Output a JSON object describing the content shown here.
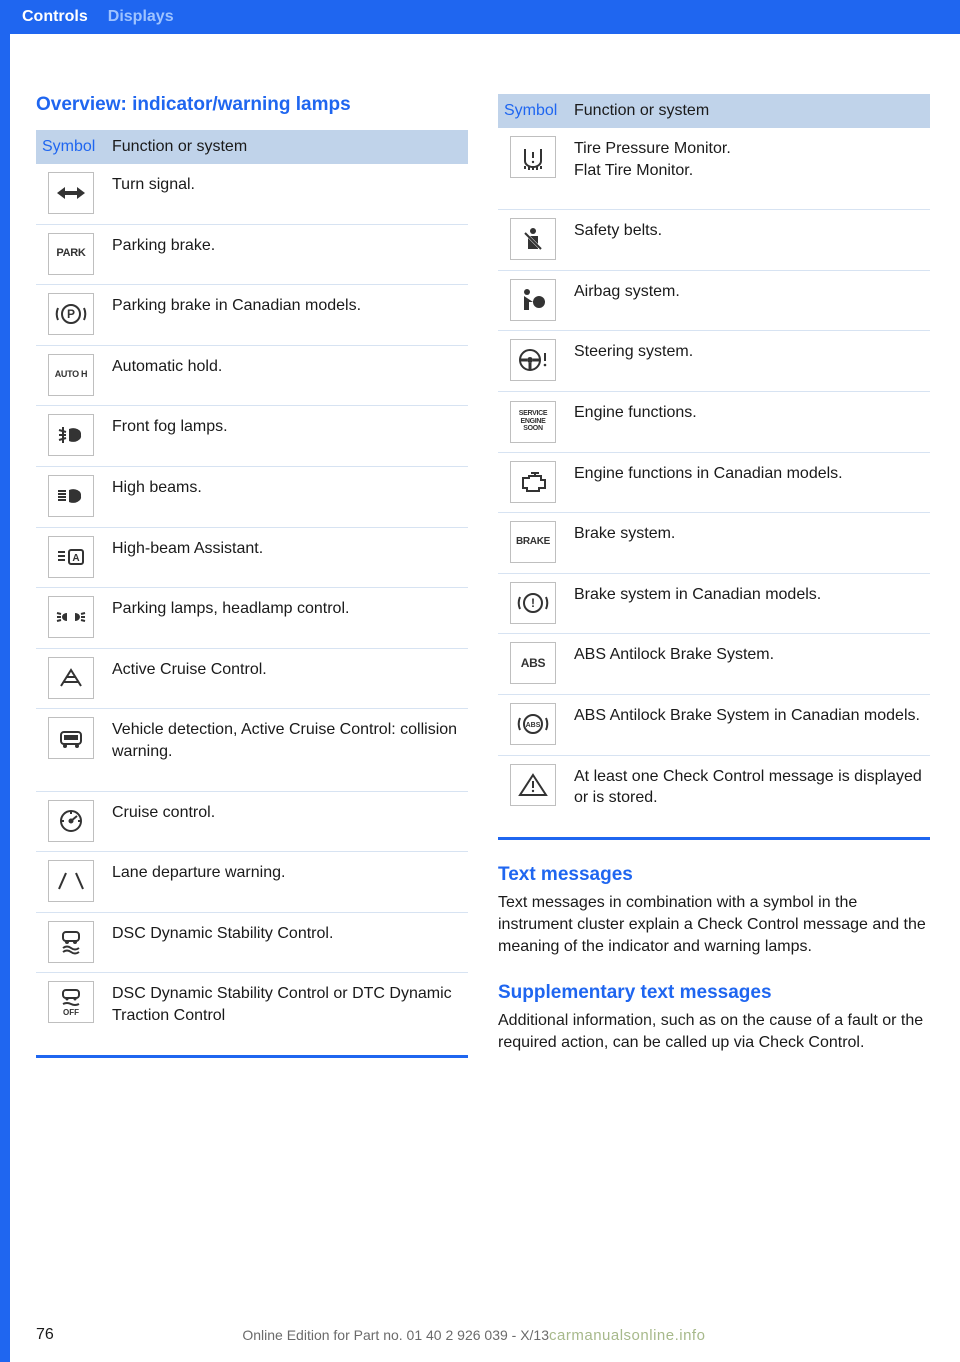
{
  "header": {
    "tab_active": "Controls",
    "tab_inactive": "Displays"
  },
  "left": {
    "heading": "Overview: indicator/warning lamps",
    "table_header_symbol": "Symbol",
    "table_header_func": "Function or system",
    "rows": [
      {
        "icon": "turn-signal",
        "label": "Turn signal."
      },
      {
        "icon": "park-text",
        "label": "Parking brake."
      },
      {
        "icon": "p-circle",
        "label": "Parking brake in Canadian models."
      },
      {
        "icon": "auto-h",
        "label": "Automatic hold."
      },
      {
        "icon": "front-fog",
        "label": "Front fog lamps."
      },
      {
        "icon": "high-beam",
        "label": "High beams."
      },
      {
        "icon": "hba",
        "label": "High-beam Assistant."
      },
      {
        "icon": "parking-lamps",
        "label": "Parking lamps, headlamp control."
      },
      {
        "icon": "acc",
        "label": "Active Cruise Control."
      },
      {
        "icon": "vehicle-detect",
        "label": "Vehicle detection, Active Cruise Control: collision warning."
      },
      {
        "icon": "cruise",
        "label": "Cruise control."
      },
      {
        "icon": "lane-depart",
        "label": "Lane departure warning."
      },
      {
        "icon": "dsc",
        "label": "DSC Dynamic Stability Control."
      },
      {
        "icon": "dsc-off",
        "label": "DSC Dynamic Stability Control or DTC Dynamic Traction Control"
      }
    ]
  },
  "right": {
    "table_header_symbol": "Symbol",
    "table_header_func": "Function or system",
    "rows": [
      {
        "icon": "tpm",
        "label": "Tire Pressure Monitor.\nFlat Tire Monitor."
      },
      {
        "icon": "seatbelt",
        "label": "Safety belts."
      },
      {
        "icon": "airbag",
        "label": "Airbag system."
      },
      {
        "icon": "steering",
        "label": "Steering system."
      },
      {
        "icon": "service-engine",
        "label": "Engine functions."
      },
      {
        "icon": "engine-canada",
        "label": "Engine functions in Canadian models."
      },
      {
        "icon": "brake-text",
        "label": "Brake system."
      },
      {
        "icon": "brake-circle",
        "label": "Brake system in Canadian models."
      },
      {
        "icon": "abs-text",
        "label": "ABS Antilock Brake System."
      },
      {
        "icon": "abs-circle",
        "label": "ABS Antilock Brake System in Canadian models."
      },
      {
        "icon": "warning-tri",
        "label": "At least one Check Control message is displayed or is stored."
      }
    ],
    "text_messages_heading": "Text messages",
    "text_messages_body": "Text messages in combination with a symbol in the instrument cluster explain a Check Control message and the meaning of the indicator and warning lamps.",
    "supplementary_heading": "Supplementary text messages",
    "supplementary_body": "Additional information, such as on the cause of a fault or the required action, can be called up via Check Control."
  },
  "footer": {
    "page_num": "76",
    "center": "Online Edition for Part no. 01 40 2 926 039 - X/13",
    "watermark": "carmanualsonline.info"
  },
  "colors": {
    "blue": "#1f66f0",
    "header_bg": "#c0d3ea",
    "row_border": "#d7e3f2",
    "icon_border": "#bfbfbf"
  }
}
